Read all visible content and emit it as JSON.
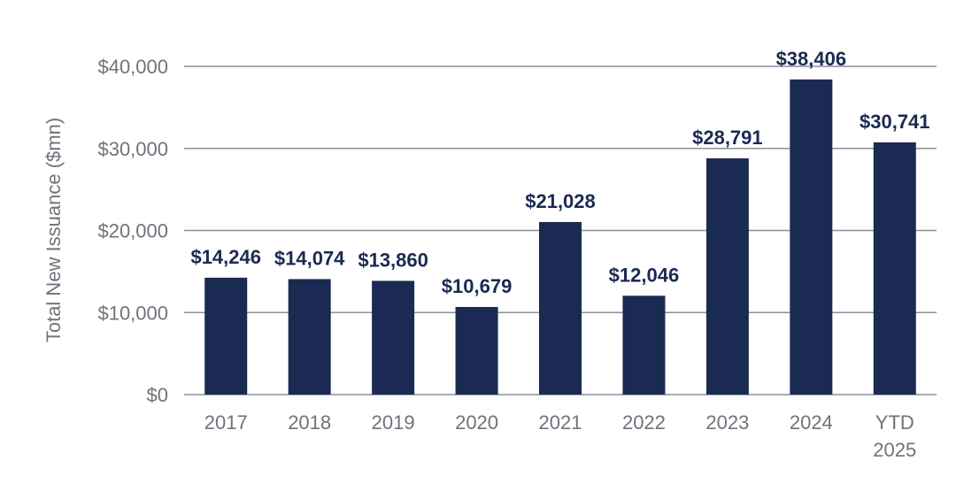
{
  "chart_data": {
    "type": "bar",
    "title": "",
    "xlabel": "",
    "ylabel": "Total New Issuance ($mn)",
    "categories": [
      "2017",
      "2018",
      "2019",
      "2020",
      "2021",
      "2022",
      "2023",
      "2024",
      "YTD 2025"
    ],
    "category_lines": [
      [
        "2017"
      ],
      [
        "2018"
      ],
      [
        "2019"
      ],
      [
        "2020"
      ],
      [
        "2021"
      ],
      [
        "2022"
      ],
      [
        "2023"
      ],
      [
        "2024"
      ],
      [
        "YTD",
        "2025"
      ]
    ],
    "values": [
      14246,
      14074,
      13860,
      10679,
      21028,
      12046,
      28791,
      38406,
      30741
    ],
    "data_labels": [
      "$14,246",
      "$14,074",
      "$13,860",
      "$10,679",
      "$21,028",
      "$12,046",
      "$28,791",
      "$38,406",
      "$30,741"
    ],
    "yticks": [
      0,
      10000,
      20000,
      30000,
      40000
    ],
    "ytick_labels": [
      "$0",
      "$10,000",
      "$20,000",
      "$30,000",
      "$40,000"
    ],
    "ylim": [
      0,
      40000
    ],
    "grid": true,
    "legend": "none",
    "colors": {
      "bar": "#1b2a52",
      "data_label": "#1b2a52",
      "axis_text": "#6f737a",
      "grid": "#8a8f98"
    }
  }
}
